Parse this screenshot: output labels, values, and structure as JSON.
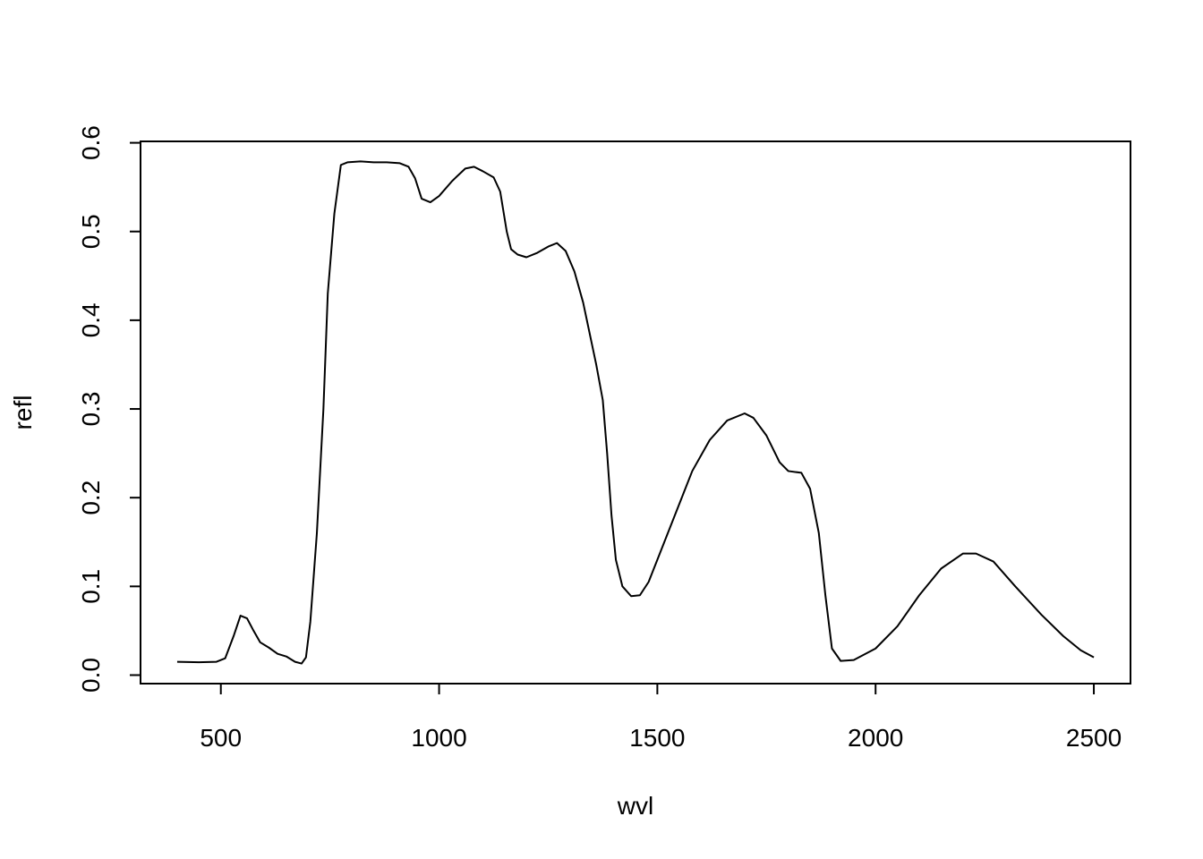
{
  "chart_data": {
    "type": "line",
    "x_label": "wvl",
    "y_label": "refl",
    "xlim": [
      316,
      2584
    ],
    "ylim": [
      -0.0096,
      0.6016
    ],
    "xticks": [
      500,
      1000,
      1500,
      2000,
      2500
    ],
    "yticks": [
      {
        "value": 0,
        "label": "0.0"
      },
      0.1,
      0.2,
      0.3,
      0.4,
      0.5,
      0.6
    ],
    "series": [
      {
        "color": "#000000",
        "x": [
          400,
          450,
          490,
          510,
          530,
          545,
          560,
          575,
          590,
          610,
          630,
          650,
          670,
          685,
          695,
          705,
          720,
          735,
          745,
          760,
          775,
          790,
          820,
          850,
          880,
          910,
          930,
          945,
          960,
          980,
          1000,
          1030,
          1060,
          1080,
          1100,
          1125,
          1140,
          1155,
          1165,
          1180,
          1200,
          1225,
          1250,
          1270,
          1290,
          1310,
          1330,
          1345,
          1360,
          1375,
          1385,
          1395,
          1405,
          1420,
          1440,
          1460,
          1480,
          1500,
          1540,
          1580,
          1620,
          1660,
          1700,
          1720,
          1750,
          1780,
          1800,
          1830,
          1850,
          1870,
          1885,
          1900,
          1920,
          1950,
          2000,
          2050,
          2100,
          2150,
          2200,
          2230,
          2270,
          2320,
          2380,
          2430,
          2470,
          2500
        ],
        "values": [
          0.015,
          0.0145,
          0.015,
          0.019,
          0.045,
          0.067,
          0.064,
          0.05,
          0.037,
          0.031,
          0.024,
          0.021,
          0.015,
          0.013,
          0.02,
          0.06,
          0.16,
          0.3,
          0.43,
          0.52,
          0.575,
          0.578,
          0.579,
          0.578,
          0.578,
          0.577,
          0.573,
          0.56,
          0.537,
          0.533,
          0.54,
          0.557,
          0.571,
          0.573,
          0.568,
          0.561,
          0.545,
          0.5,
          0.48,
          0.474,
          0.471,
          0.476,
          0.483,
          0.487,
          0.478,
          0.455,
          0.42,
          0.385,
          0.35,
          0.31,
          0.25,
          0.18,
          0.13,
          0.1,
          0.089,
          0.09,
          0.105,
          0.13,
          0.18,
          0.23,
          0.265,
          0.287,
          0.295,
          0.29,
          0.27,
          0.24,
          0.23,
          0.228,
          0.21,
          0.16,
          0.09,
          0.03,
          0.016,
          0.017,
          0.03,
          0.055,
          0.09,
          0.12,
          0.137,
          0.137,
          0.128,
          0.1,
          0.068,
          0.044,
          0.028,
          0.02
        ]
      }
    ]
  }
}
